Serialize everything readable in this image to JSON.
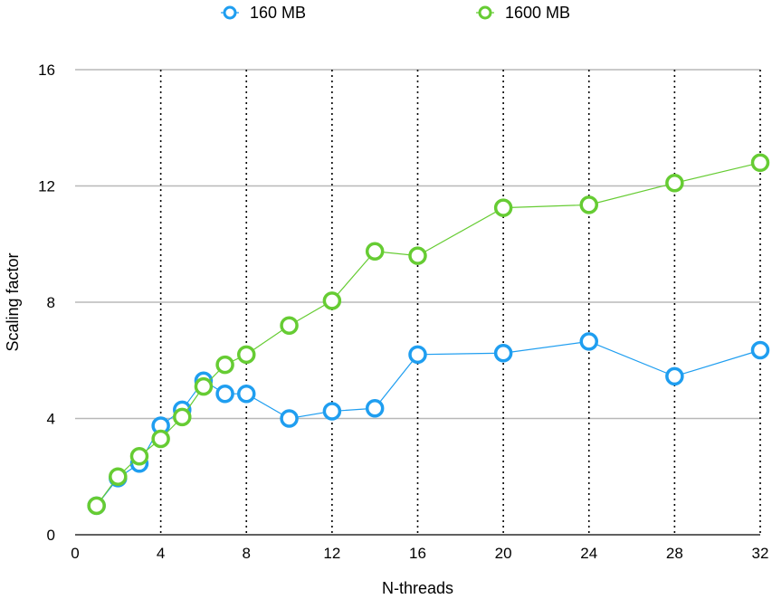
{
  "chart_data": {
    "type": "line",
    "xlabel": "N-threads",
    "ylabel": "Scaling factor",
    "xlim": [
      0,
      32
    ],
    "ylim": [
      0,
      16
    ],
    "x_ticks": [
      0,
      4,
      8,
      12,
      16,
      20,
      24,
      28,
      32
    ],
    "y_ticks": [
      0,
      4,
      8,
      12,
      16
    ],
    "x_tick_labels": [
      "0",
      "4",
      "8",
      "12",
      "16",
      "20",
      "24",
      "28",
      "32"
    ],
    "y_tick_labels": [
      "0",
      "4",
      "8",
      "12",
      "16"
    ],
    "grid": {
      "x": "dotted",
      "y": "solid"
    },
    "legend_position": "top",
    "series": [
      {
        "name": "160 MB",
        "color": "#1f9ef0",
        "x": [
          1,
          2,
          3,
          4,
          5,
          6,
          7,
          8,
          10,
          12,
          14,
          16,
          20,
          24,
          28,
          32
        ],
        "values": [
          1.0,
          1.95,
          2.45,
          3.75,
          4.3,
          5.3,
          4.85,
          4.85,
          4.0,
          4.25,
          4.35,
          6.2,
          6.25,
          6.65,
          5.45,
          6.35
        ]
      },
      {
        "name": "1600 MB",
        "color": "#66cc33",
        "x": [
          1,
          2,
          3,
          4,
          5,
          6,
          7,
          8,
          10,
          12,
          14,
          16,
          20,
          24,
          28,
          32
        ],
        "values": [
          1.0,
          2.0,
          2.7,
          3.3,
          4.05,
          5.1,
          5.85,
          6.2,
          7.2,
          8.05,
          9.75,
          9.6,
          11.25,
          11.35,
          12.1,
          12.8
        ]
      }
    ]
  }
}
